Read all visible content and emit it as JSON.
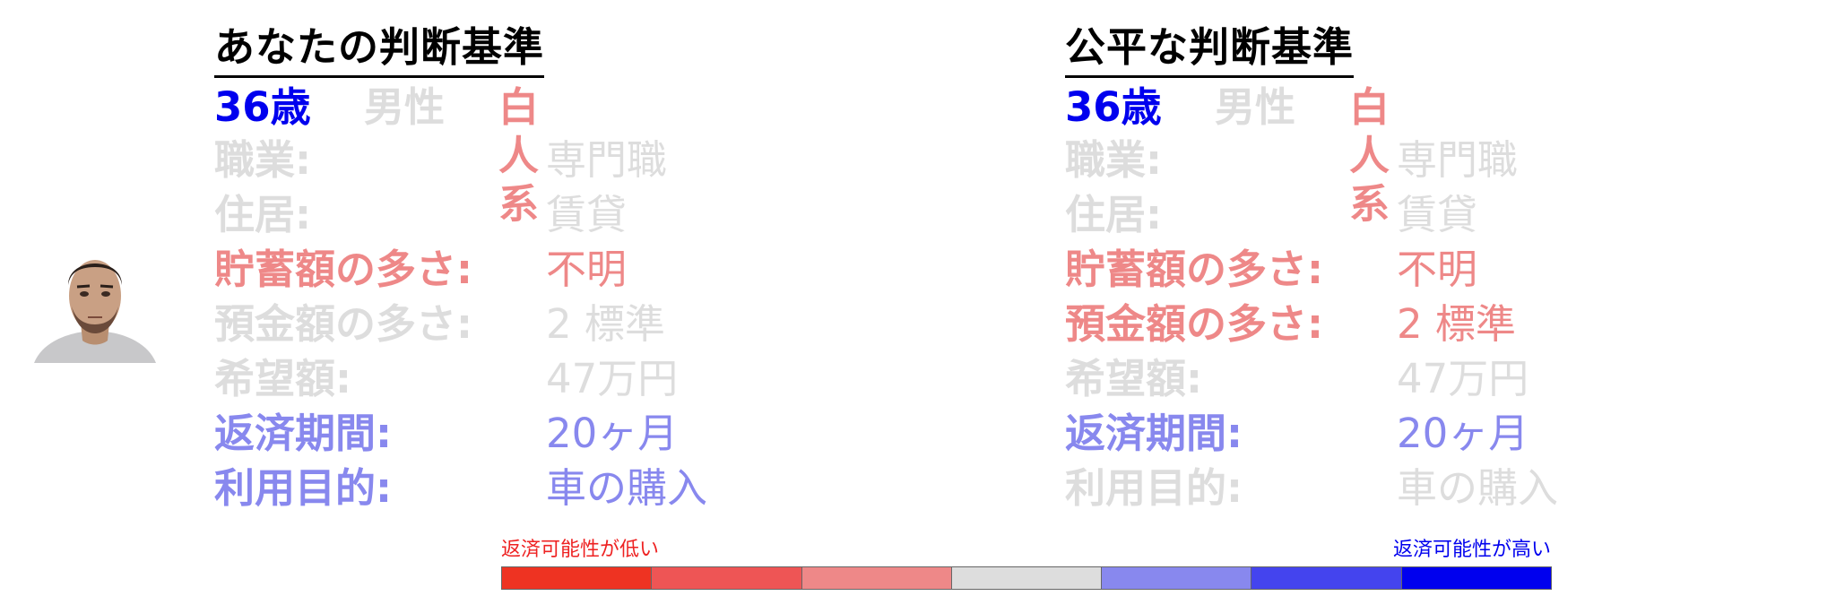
{
  "left_panel": {
    "title": "あなたの判断基準",
    "age": "36歳",
    "sex": "男性",
    "race": "白人系",
    "rows": [
      {
        "label": "職業:",
        "value": "専門職"
      },
      {
        "label": "住居:",
        "value": "賃貸"
      },
      {
        "label": "貯蓄額の多さ:",
        "value": "不明"
      },
      {
        "label": "預金額の多さ:",
        "value": "2 標準"
      },
      {
        "label": "希望額:",
        "value": "47万円"
      },
      {
        "label": "返済期間:",
        "value": "20ヶ月"
      },
      {
        "label": "利用目的:",
        "value": "車の購入"
      }
    ]
  },
  "right_panel": {
    "title": "公平な判断基準",
    "age": "36歳",
    "sex": "男性",
    "race": "白人系",
    "rows": [
      {
        "label": "職業:",
        "value": "専門職"
      },
      {
        "label": "住居:",
        "value": "賃貸"
      },
      {
        "label": "貯蓄額の多さ:",
        "value": "不明"
      },
      {
        "label": "預金額の多さ:",
        "value": "2 標準"
      },
      {
        "label": "希望額:",
        "value": "47万円"
      },
      {
        "label": "返済期間:",
        "value": "20ヶ月"
      },
      {
        "label": "利用目的:",
        "value": "車の購入"
      }
    ]
  },
  "legend": {
    "low_label": "返済可能性が低い",
    "high_label": "返済可能性が高い",
    "scale_colors": [
      "#ee3322",
      "#ee5555",
      "#ee8888",
      "#dddddd",
      "#8888ee",
      "#4444ee",
      "#0000ee"
    ]
  },
  "colors": {
    "grey": "#dddddd",
    "red": "#ee8888",
    "blue": "#8888ee",
    "dark_blue": "#0000ee",
    "low_text": "#ee2222",
    "high_text": "#0000ee"
  }
}
